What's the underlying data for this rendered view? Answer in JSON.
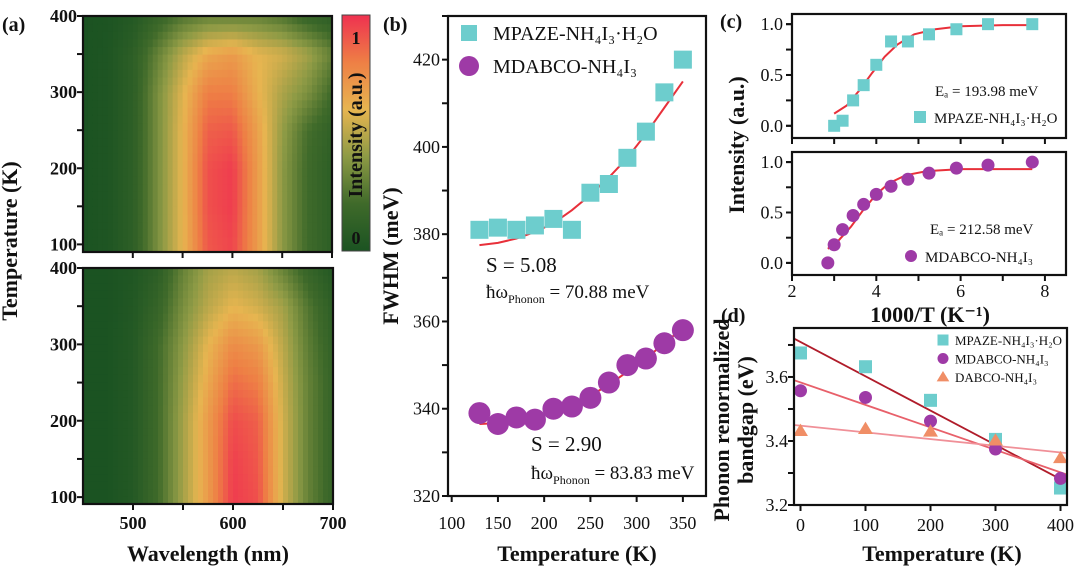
{
  "chart_data": [
    {
      "panel": "(a)",
      "type": "heatmap",
      "xlabel": "Wavelength (nm)",
      "ylabel": "Temperature (K)",
      "xlim": [
        450,
        700
      ],
      "xticks": [
        500,
        600,
        700
      ],
      "yticks": [
        100,
        200,
        300,
        400
      ],
      "colorbar": {
        "label": "Intensity (a.u.)",
        "tick_labels": [
          "0",
          "1"
        ],
        "range": [
          0,
          1
        ],
        "colors": [
          "#1b5322",
          "#3f6a2a",
          "#8d9a45",
          "#e7b550",
          "#ee7f45",
          "#ef3150"
        ]
      },
      "wavelengths": [
        450,
        475,
        500,
        525,
        550,
        575,
        600,
        625,
        650,
        675,
        700
      ],
      "temperatures": [
        100,
        150,
        200,
        250,
        300,
        350,
        400
      ],
      "maps": [
        {
          "ylim": [
            90,
            400
          ],
          "z": [
            [
              0,
              0.02,
              0.1,
              0.35,
              0.6,
              0.9,
              0.95,
              0.7,
              0.4,
              0.2,
              0.1
            ],
            [
              0,
              0.02,
              0.1,
              0.35,
              0.6,
              0.92,
              0.97,
              0.7,
              0.4,
              0.2,
              0.1
            ],
            [
              0,
              0.02,
              0.1,
              0.35,
              0.6,
              0.92,
              0.97,
              0.7,
              0.4,
              0.2,
              0.1
            ],
            [
              0,
              0.02,
              0.1,
              0.35,
              0.6,
              0.88,
              0.9,
              0.68,
              0.42,
              0.22,
              0.12
            ],
            [
              0,
              0.02,
              0.1,
              0.35,
              0.58,
              0.8,
              0.8,
              0.62,
              0.47,
              0.36,
              0.2
            ],
            [
              0,
              0.02,
              0.1,
              0.3,
              0.5,
              0.65,
              0.7,
              0.6,
              0.55,
              0.45,
              0.3
            ],
            [
              0,
              0.01,
              0.05,
              0.15,
              0.25,
              0.3,
              0.3,
              0.3,
              0.25,
              0.15,
              0.1
            ]
          ]
        },
        {
          "ylim": [
            91,
            400
          ],
          "z": [
            [
              0,
              0,
              0.05,
              0.2,
              0.45,
              0.7,
              0.97,
              0.92,
              0.55,
              0.3,
              0.15
            ],
            [
              0,
              0,
              0.05,
              0.2,
              0.45,
              0.7,
              0.96,
              0.9,
              0.55,
              0.3,
              0.15
            ],
            [
              0,
              0,
              0.05,
              0.2,
              0.45,
              0.7,
              0.93,
              0.88,
              0.55,
              0.3,
              0.15
            ],
            [
              0,
              0,
              0.05,
              0.2,
              0.43,
              0.65,
              0.85,
              0.8,
              0.53,
              0.3,
              0.15
            ],
            [
              0,
              0,
              0.05,
              0.2,
              0.4,
              0.6,
              0.75,
              0.7,
              0.5,
              0.28,
              0.13
            ],
            [
              0,
              0,
              0.04,
              0.15,
              0.35,
              0.5,
              0.6,
              0.55,
              0.45,
              0.25,
              0.1
            ],
            [
              0,
              0,
              0.03,
              0.1,
              0.3,
              0.45,
              0.5,
              0.45,
              0.3,
              0.15,
              0.05
            ]
          ]
        }
      ]
    },
    {
      "panel": "(b)",
      "type": "scatter",
      "xlabel": "Temperature (K)",
      "ylabel": "FWHM (meV)",
      "xlim": [
        96,
        375
      ],
      "ylim": [
        320,
        430
      ],
      "xticks": [
        100,
        150,
        200,
        250,
        300,
        350
      ],
      "yticks": [
        320,
        340,
        360,
        380,
        400,
        420
      ],
      "legend": "top-left",
      "series": [
        {
          "name": "MPAZE-NH₄I₃·H₂O",
          "marker": "square",
          "color": "#6dcdcd",
          "x": [
            130,
            150,
            170,
            190,
            210,
            230,
            250,
            270,
            290,
            310,
            330,
            350
          ],
          "y": [
            381,
            381.5,
            381,
            382,
            383.5,
            381,
            389.5,
            391.5,
            397.5,
            403.5,
            412.5,
            420
          ],
          "fit_x": [
            130,
            150,
            170,
            190,
            210,
            230,
            250,
            270,
            290,
            310,
            330,
            350
          ],
          "fit_y": [
            377.5,
            378,
            379,
            380.5,
            382.5,
            385.5,
            389,
            393,
            397.5,
            403,
            409,
            415
          ]
        },
        {
          "name": "MDABCO-NH₄I₃",
          "marker": "circle",
          "color": "#9e3aa6",
          "x": [
            130,
            150,
            170,
            190,
            210,
            230,
            250,
            270,
            290,
            310,
            330,
            350
          ],
          "y": [
            339,
            336.5,
            338,
            337.5,
            340,
            340.5,
            342.5,
            346,
            350,
            351.5,
            355,
            358
          ],
          "fit_x": [
            130,
            150,
            170,
            190,
            210,
            230,
            250,
            270,
            290,
            310,
            330,
            350
          ],
          "fit_y": [
            336.5,
            336.7,
            337.3,
            338.2,
            339.4,
            341,
            343,
            345.5,
            348.5,
            351.5,
            355,
            358.5
          ]
        }
      ],
      "fit_color": "#e8303a",
      "annotations": [
        {
          "s": "S = 5.08",
          "hw": "ħω",
          "sub": "Phonon",
          "value": " = 70.88 meV"
        },
        {
          "s": "S = 2.90",
          "hw": "ħω",
          "sub": "Phonon",
          "value": " = 83.83 meV"
        }
      ]
    },
    {
      "panel": "(c)",
      "type": "scatter",
      "xlabel": "1000/T (K⁻¹)",
      "ylabel": "Intensity (a.u.)",
      "xlim": [
        2,
        8.5
      ],
      "xticks": [
        2,
        4,
        6,
        8
      ],
      "subplots": [
        {
          "ylim": [
            -0.12,
            1.1
          ],
          "yticks": [
            "0.0",
            "0.5",
            "1.0"
          ],
          "annotation": "Eₐ = 193.98 meV",
          "series": {
            "name": "MPAZE-NH₄I₃·H₂O",
            "marker": "square",
            "color": "#6dcdcd",
            "x": [
              3.0,
              3.2,
              3.45,
              3.7,
              4.0,
              4.35,
              4.75,
              5.25,
              5.9,
              6.65,
              7.7
            ],
            "y": [
              0.0,
              0.05,
              0.25,
              0.4,
              0.6,
              0.83,
              0.83,
              0.9,
              0.95,
              1.0,
              1.0
            ],
            "fit_x": [
              3.0,
              3.3,
              3.6,
              3.9,
              4.2,
              4.5,
              4.9,
              5.4,
              6.0,
              7.0,
              7.7
            ],
            "fit_y": [
              0.12,
              0.2,
              0.35,
              0.52,
              0.68,
              0.8,
              0.9,
              0.95,
              0.98,
              0.99,
              0.99
            ]
          }
        },
        {
          "ylim": [
            -0.12,
            1.1
          ],
          "yticks": [
            "0.0",
            "0.5",
            "1.0"
          ],
          "annotation": "Eₐ = 212.58 meV",
          "series": {
            "name": "MDABCO-NH₄I₃",
            "marker": "circle",
            "color": "#9e3aa6",
            "x": [
              2.85,
              3.0,
              3.2,
              3.45,
              3.7,
              4.0,
              4.35,
              4.75,
              5.25,
              5.9,
              6.65,
              7.7
            ],
            "y": [
              0.0,
              0.18,
              0.33,
              0.47,
              0.58,
              0.68,
              0.76,
              0.83,
              0.89,
              0.94,
              0.97,
              1.0
            ],
            "fit_x": [
              2.85,
              3.1,
              3.4,
              3.7,
              4.0,
              4.3,
              4.7,
              5.2,
              6.0,
              7.7
            ],
            "fit_y": [
              0.14,
              0.22,
              0.36,
              0.53,
              0.68,
              0.79,
              0.87,
              0.91,
              0.93,
              0.93
            ]
          }
        }
      ],
      "fit_color": "#e8303a"
    },
    {
      "panel": "(d)",
      "type": "scatter",
      "xlabel": "Temperature (K)",
      "ylabel": [
        "Phonon renormalized",
        "bandgap (eV)"
      ],
      "xlim": [
        -10,
        410
      ],
      "ylim": [
        3.2,
        3.753
      ],
      "xticks": [
        0,
        100,
        200,
        300,
        400
      ],
      "yticks": [
        "3.2",
        "3.4",
        "3.6"
      ],
      "legend": "top-right",
      "series": [
        {
          "name": "MPAZE-NH₄I₃·H₂O",
          "marker": "square",
          "color": "#6dcdcd",
          "x": [
            0,
            100,
            200,
            300,
            400
          ],
          "y": [
            3.675,
            3.632,
            3.527,
            3.405,
            3.253
          ],
          "fit_x": [
            -10,
            410
          ],
          "fit_y": [
            3.72,
            3.27
          ],
          "fit_color": "#b01c2a"
        },
        {
          "name": "MDABCO-NH₄I₃",
          "marker": "circle",
          "color": "#9e3aa6",
          "x": [
            0,
            100,
            200,
            300,
            400
          ],
          "y": [
            3.557,
            3.536,
            3.462,
            3.375,
            3.283
          ],
          "fit_x": [
            -10,
            410
          ],
          "fit_y": [
            3.59,
            3.295
          ],
          "fit_color": "#e8606a"
        },
        {
          "name": "DABCO-NH₄I₃",
          "marker": "triangle",
          "color": "#f08e66",
          "x": [
            0,
            100,
            200,
            300,
            400
          ],
          "y": [
            3.432,
            3.438,
            3.43,
            3.402,
            3.347
          ],
          "fit_x": [
            -10,
            410
          ],
          "fit_y": [
            3.45,
            3.362
          ],
          "fit_color": "#f09098"
        }
      ]
    }
  ]
}
